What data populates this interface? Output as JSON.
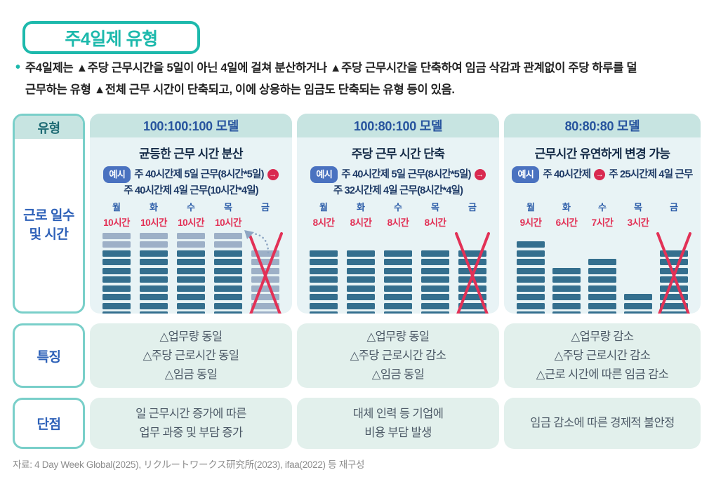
{
  "page": {
    "badge_title": "주4일제 유형",
    "bullet": "•",
    "intro_line1": "주4일제는 ▲주당 근무시간을 5일이 아닌 4일에 걸쳐 분산하거나 ▲주당 근무시간을 단축하여 임금 삭감과 관계없이 주당 하루를 덜",
    "intro_line2": "근무하는 유형 ▲전체 근무 시간이 단축되고, 이에 상응하는 임금도 단축되는 유형 등이 있음.",
    "source": "자료: 4 Day Week Global(2025), リクルートワークス研究所(2023), ifaa(2022) 등 재구성"
  },
  "icons": {
    "arrow_right": "→"
  },
  "row_labels": {
    "col_header": "유형",
    "work_label_line1": "근로 일수",
    "work_label_line2": "및 시간",
    "features": "특징",
    "cons": "단점"
  },
  "columns": [
    {
      "model": "100:100:100 모델",
      "subtitle": "균등한 근무 시간 분산",
      "example_badge": "예시",
      "example_line1": "주 40시간제 5일 근무(8시간*5일)",
      "example_line2": "주 40시간제 4일 근무(10시간*4일)",
      "features": [
        "△업무량 동일",
        "△주당 근로시간 동일",
        "△임금 동일"
      ],
      "cons": [
        "일 근무시간 증가에 따른",
        "업무 과중 및 부담 증가"
      ]
    },
    {
      "model": "100:80:100 모델",
      "subtitle": "주당 근무 시간 단축",
      "example_badge": "예시",
      "example_line1": "주 40시간제 5일 근무(8시간*5일)",
      "example_line2": "주 32시간제 4일 근무(8시간*4일)",
      "features": [
        "△업무량 동일",
        "△주당 근로시간 감소",
        "△임금 동일"
      ],
      "cons": [
        "대체 인력 등 기업에",
        "비용 부담 발생"
      ]
    },
    {
      "model": "80:80:80 모델",
      "subtitle": "근무시간 유연하게 변경 가능",
      "example_badge": "예시",
      "example_before_arrow": "주 40시간제",
      "example_after_arrow": "주 25시간제 4일 근무",
      "features": [
        "△업무량 감소",
        "△주당 근로시간 감소",
        "△근로 시간에 따른 임금 감소"
      ],
      "cons": [
        "임금 감소에 따른 경제적 불안정"
      ]
    }
  ],
  "chart_data": [
    {
      "type": "bar",
      "title": "100:100:100 모델",
      "subtitle": "균등한 근무 시간 분산",
      "categories": [
        "월",
        "화",
        "수",
        "목",
        "금"
      ],
      "hour_labels": [
        "10시간",
        "10시간",
        "10시간",
        "10시간",
        ""
      ],
      "unit": "시간",
      "max_segments": 10,
      "moved_hours_arrow": true,
      "bars": [
        {
          "day": "월",
          "hours": 10,
          "top_light_segments": 2,
          "dark_segments": 8,
          "crossed": false
        },
        {
          "day": "화",
          "hours": 10,
          "top_light_segments": 2,
          "dark_segments": 8,
          "crossed": false
        },
        {
          "day": "수",
          "hours": 10,
          "top_light_segments": 2,
          "dark_segments": 8,
          "crossed": false
        },
        {
          "day": "목",
          "hours": 10,
          "top_light_segments": 2,
          "dark_segments": 8,
          "crossed": false
        },
        {
          "day": "금",
          "hours": 0,
          "top_light_segments": 8,
          "dark_segments": 0,
          "crossed": true
        }
      ]
    },
    {
      "type": "bar",
      "title": "100:80:100 모델",
      "subtitle": "주당 근무 시간 단축",
      "categories": [
        "월",
        "화",
        "수",
        "목",
        "금"
      ],
      "hour_labels": [
        "8시간",
        "8시간",
        "8시간",
        "8시간",
        ""
      ],
      "unit": "시간",
      "max_segments": 10,
      "moved_hours_arrow": false,
      "bars": [
        {
          "day": "월",
          "hours": 8,
          "top_light_segments": 0,
          "dark_segments": 8,
          "crossed": false
        },
        {
          "day": "화",
          "hours": 8,
          "top_light_segments": 0,
          "dark_segments": 8,
          "crossed": false
        },
        {
          "day": "수",
          "hours": 8,
          "top_light_segments": 0,
          "dark_segments": 8,
          "crossed": false
        },
        {
          "day": "목",
          "hours": 8,
          "top_light_segments": 0,
          "dark_segments": 8,
          "crossed": false
        },
        {
          "day": "금",
          "hours": 0,
          "top_light_segments": 0,
          "dark_segments": 8,
          "crossed": true
        }
      ]
    },
    {
      "type": "bar",
      "title": "80:80:80 모델",
      "subtitle": "근무시간 유연하게 변경 가능",
      "categories": [
        "월",
        "화",
        "수",
        "목",
        "금"
      ],
      "hour_labels": [
        "9시간",
        "6시간",
        "7시간",
        "3시간",
        ""
      ],
      "unit": "시간",
      "max_segments": 10,
      "moved_hours_arrow": false,
      "bars": [
        {
          "day": "월",
          "hours": 9,
          "top_light_segments": 0,
          "dark_segments": 9,
          "crossed": false
        },
        {
          "day": "화",
          "hours": 6,
          "top_light_segments": 0,
          "dark_segments": 6,
          "crossed": false
        },
        {
          "day": "수",
          "hours": 7,
          "top_light_segments": 0,
          "dark_segments": 7,
          "crossed": false
        },
        {
          "day": "목",
          "hours": 3,
          "top_light_segments": 0,
          "dark_segments": 3,
          "crossed": false
        },
        {
          "day": "금",
          "hours": 0,
          "top_light_segments": 0,
          "dark_segments": 8,
          "crossed": true
        }
      ]
    }
  ],
  "colors": {
    "accent_teal": "#1db9ac",
    "label_border_teal": "#79cfc9",
    "header_band": "#c7e4e1",
    "card_bg": "#e8f3f5",
    "cell_bg": "#e2f0ec",
    "model_blue": "#27549e",
    "label_blue": "#2e61b8",
    "badge_blue": "#4a72c0",
    "red": "#e23156",
    "bar_dark": "#346f8e",
    "bar_light": "#9db0c7",
    "arrow_gray": "#8ea6c3"
  }
}
